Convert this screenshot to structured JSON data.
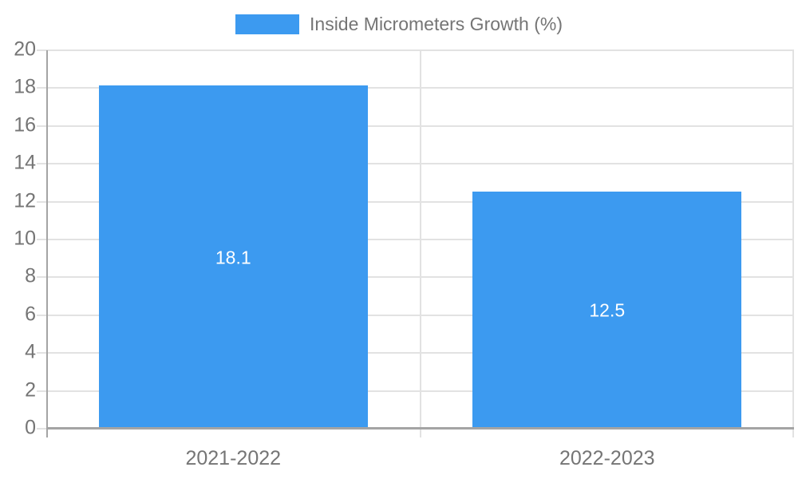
{
  "chart_data": {
    "type": "bar",
    "title": "",
    "legend": "Inside Micrometers Growth (%)",
    "legend_position": "top-center",
    "categories": [
      "2021-2022",
      "2022-2023"
    ],
    "values": [
      18.1,
      12.5
    ],
    "value_labels": [
      "18.1",
      "12.5"
    ],
    "xlabel": "",
    "ylabel": "",
    "ylim": [
      0,
      20
    ],
    "ytick_step": 2,
    "yticks": [
      0,
      2,
      4,
      6,
      8,
      10,
      12,
      14,
      16,
      18,
      20
    ],
    "grid": true,
    "category_divider_lines": true,
    "colors": {
      "bar": "#3C9AF0",
      "grid": "#e2e2e2",
      "axis": "#a4a4a4",
      "text": "#757575",
      "bar_label": "#ffffff",
      "background": "#ffffff"
    }
  }
}
